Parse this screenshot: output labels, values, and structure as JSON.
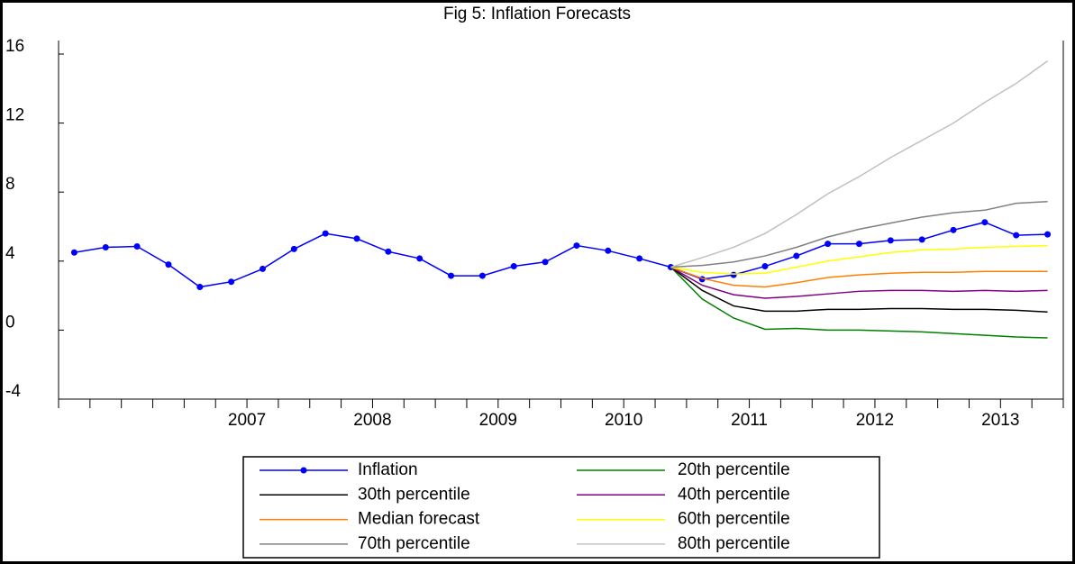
{
  "chart_data": {
    "type": "line",
    "title": "Fig 5: Inflation Forecasts",
    "categories": [
      null,
      null,
      null,
      null,
      "2007",
      null,
      null,
      null,
      "2008",
      null,
      null,
      null,
      "2009",
      null,
      null,
      null,
      "2010",
      null,
      null,
      null,
      "2011",
      null,
      null,
      null,
      "2012",
      null,
      null,
      null,
      "2013",
      null,
      null,
      null
    ],
    "series": [
      {
        "name": "Inflation",
        "color": "#0000ff",
        "markers": true,
        "values": [
          4.5,
          4.8,
          4.85,
          3.8,
          2.5,
          2.8,
          3.55,
          4.7,
          5.6,
          5.3,
          4.55,
          4.15,
          3.15,
          3.15,
          3.7,
          3.95,
          4.9,
          4.6,
          4.15,
          3.65,
          2.95,
          3.2,
          3.7,
          4.3,
          5.0,
          5.0,
          5.2,
          5.25,
          5.8,
          6.25,
          5.5,
          5.55
        ]
      },
      {
        "name": "20th percentile",
        "color": "#008000",
        "values": [
          null,
          null,
          null,
          null,
          null,
          null,
          null,
          null,
          null,
          null,
          null,
          null,
          null,
          null,
          null,
          null,
          null,
          null,
          null,
          3.65,
          1.8,
          0.7,
          0.05,
          0.1,
          0.0,
          0.0,
          -0.05,
          -0.1,
          -0.2,
          -0.3,
          -0.4,
          -0.45
        ]
      },
      {
        "name": "30th percentile",
        "color": "#000000",
        "values": [
          null,
          null,
          null,
          null,
          null,
          null,
          null,
          null,
          null,
          null,
          null,
          null,
          null,
          null,
          null,
          null,
          null,
          null,
          null,
          3.65,
          2.3,
          1.4,
          1.1,
          1.1,
          1.2,
          1.2,
          1.25,
          1.25,
          1.2,
          1.2,
          1.15,
          1.05
        ]
      },
      {
        "name": "40th percentile",
        "color": "#800080",
        "values": [
          null,
          null,
          null,
          null,
          null,
          null,
          null,
          null,
          null,
          null,
          null,
          null,
          null,
          null,
          null,
          null,
          null,
          null,
          null,
          3.65,
          2.6,
          2.05,
          1.85,
          1.95,
          2.1,
          2.25,
          2.3,
          2.3,
          2.25,
          2.3,
          2.25,
          2.3
        ]
      },
      {
        "name": "Median forecast",
        "color": "#ff8000",
        "values": [
          null,
          null,
          null,
          null,
          null,
          null,
          null,
          null,
          null,
          null,
          null,
          null,
          null,
          null,
          null,
          null,
          null,
          null,
          null,
          3.65,
          3.0,
          2.6,
          2.5,
          2.75,
          3.05,
          3.2,
          3.3,
          3.35,
          3.35,
          3.4,
          3.4,
          3.4
        ]
      },
      {
        "name": "60th percentile",
        "color": "#ffff00",
        "values": [
          null,
          null,
          null,
          null,
          null,
          null,
          null,
          null,
          null,
          null,
          null,
          null,
          null,
          null,
          null,
          null,
          null,
          null,
          null,
          3.65,
          3.35,
          3.25,
          3.3,
          3.65,
          4.0,
          4.25,
          4.5,
          4.65,
          4.7,
          4.8,
          4.85,
          4.9
        ]
      },
      {
        "name": "70th percentile",
        "color": "#808080",
        "values": [
          null,
          null,
          null,
          null,
          null,
          null,
          null,
          null,
          null,
          null,
          null,
          null,
          null,
          null,
          null,
          null,
          null,
          null,
          null,
          3.65,
          3.75,
          3.95,
          4.3,
          4.8,
          5.4,
          5.85,
          6.2,
          6.55,
          6.8,
          6.95,
          7.35,
          7.45
        ]
      },
      {
        "name": "80th percentile",
        "color": "#c0c0c0",
        "values": [
          null,
          null,
          null,
          null,
          null,
          null,
          null,
          null,
          null,
          null,
          null,
          null,
          null,
          null,
          null,
          null,
          null,
          null,
          null,
          3.65,
          4.2,
          4.8,
          5.6,
          6.7,
          7.9,
          8.9,
          10.0,
          11.0,
          12.0,
          13.2,
          14.3,
          15.6
        ]
      }
    ],
    "ylim": [
      -4,
      16
    ],
    "yticks": [
      -4,
      0,
      4,
      8,
      12,
      16
    ],
    "grid": false,
    "legend": "bottom"
  }
}
